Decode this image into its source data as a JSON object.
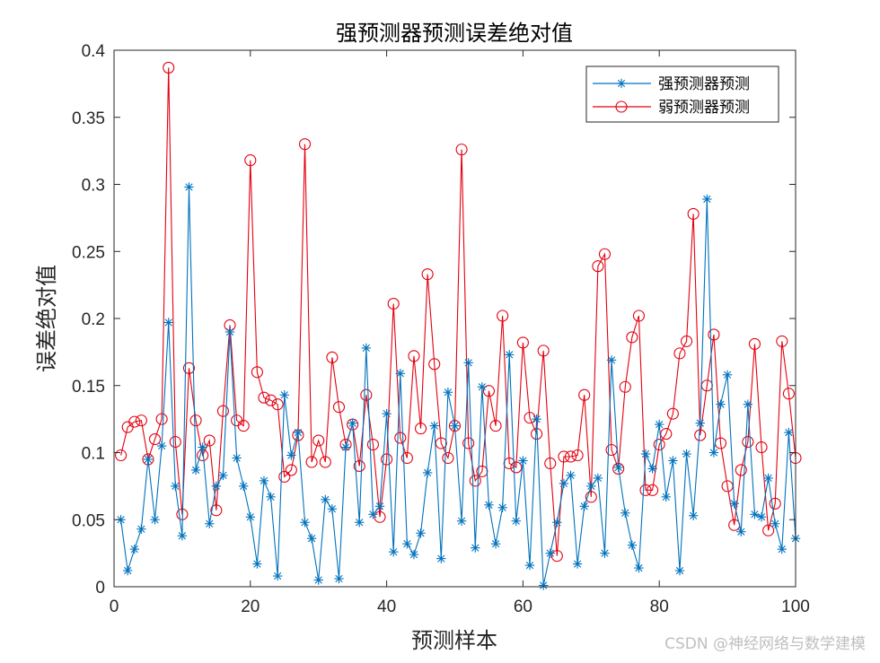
{
  "watermark": "CSDN @神经网络与数学建模",
  "chart_data": {
    "type": "line",
    "title": "强预测器预测误差绝对值",
    "xlabel": "预测样本",
    "ylabel": "误差绝对值",
    "xlim": [
      0,
      100
    ],
    "ylim": [
      0,
      0.4
    ],
    "xticks": [
      0,
      20,
      40,
      60,
      80,
      100
    ],
    "yticks": [
      0,
      0.05,
      0.1,
      0.15,
      0.2,
      0.25,
      0.3,
      0.35,
      0.4
    ],
    "xtick_labels": [
      "0",
      "20",
      "40",
      "60",
      "80",
      "100"
    ],
    "ytick_labels": [
      "0",
      "0.05",
      "0.1",
      "0.15",
      "0.2",
      "0.25",
      "0.3",
      "0.35",
      "0.4"
    ],
    "grid": false,
    "legend_position": "top-right",
    "x": [
      1,
      2,
      3,
      4,
      5,
      6,
      7,
      8,
      9,
      10,
      11,
      12,
      13,
      14,
      15,
      16,
      17,
      18,
      19,
      20,
      21,
      22,
      23,
      24,
      25,
      26,
      27,
      28,
      29,
      30,
      31,
      32,
      33,
      34,
      35,
      36,
      37,
      38,
      39,
      40,
      41,
      42,
      43,
      44,
      45,
      46,
      47,
      48,
      49,
      50,
      51,
      52,
      53,
      54,
      55,
      56,
      57,
      58,
      59,
      60,
      61,
      62,
      63,
      64,
      65,
      66,
      67,
      68,
      69,
      70,
      71,
      72,
      73,
      74,
      75,
      76,
      77,
      78,
      79,
      80,
      81,
      82,
      83,
      84,
      85,
      86,
      87,
      88,
      89,
      90,
      91,
      92,
      93,
      94,
      95,
      96,
      97,
      98,
      99,
      100
    ],
    "series": [
      {
        "name": "强预测器预测",
        "color": "#0072bd",
        "marker": "asterisk",
        "values": [
          0.05,
          0.012,
          0.028,
          0.043,
          0.095,
          0.05,
          0.105,
          0.197,
          0.075,
          0.038,
          0.298,
          0.087,
          0.104,
          0.047,
          0.075,
          0.083,
          0.19,
          0.096,
          0.075,
          0.052,
          0.017,
          0.079,
          0.067,
          0.008,
          0.143,
          0.098,
          0.115,
          0.048,
          0.036,
          0.005,
          0.065,
          0.058,
          0.006,
          0.104,
          0.122,
          0.048,
          0.178,
          0.054,
          0.06,
          0.129,
          0.026,
          0.159,
          0.032,
          0.024,
          0.04,
          0.085,
          0.12,
          0.021,
          0.145,
          0.12,
          0.049,
          0.167,
          0.029,
          0.149,
          0.061,
          0.032,
          0.059,
          0.173,
          0.049,
          0.094,
          0.016,
          0.125,
          0.001,
          0.025,
          0.048,
          0.077,
          0.083,
          0.017,
          0.06,
          0.075,
          0.081,
          0.025,
          0.169,
          0.089,
          0.055,
          0.031,
          0.014,
          0.099,
          0.088,
          0.121,
          0.067,
          0.094,
          0.012,
          0.099,
          0.053,
          0.122,
          0.289,
          0.1,
          0.136,
          0.158,
          0.062,
          0.041,
          0.136,
          0.054,
          0.052,
          0.081,
          0.047,
          0.028,
          0.115,
          0.036
        ]
      },
      {
        "name": "弱预测器预测",
        "color": "#e3000f",
        "marker": "circle",
        "values": [
          0.098,
          0.119,
          0.123,
          0.124,
          0.095,
          0.11,
          0.125,
          0.387,
          0.108,
          0.054,
          0.163,
          0.124,
          0.098,
          0.109,
          0.057,
          0.131,
          0.195,
          0.124,
          0.12,
          0.318,
          0.16,
          0.141,
          0.139,
          0.136,
          0.082,
          0.087,
          0.113,
          0.33,
          0.093,
          0.109,
          0.093,
          0.171,
          0.134,
          0.106,
          0.121,
          0.09,
          0.143,
          0.106,
          0.052,
          0.095,
          0.211,
          0.111,
          0.096,
          0.172,
          0.118,
          0.233,
          0.166,
          0.107,
          0.096,
          0.12,
          0.326,
          0.107,
          0.079,
          0.086,
          0.146,
          0.12,
          0.202,
          0.092,
          0.089,
          0.182,
          0.126,
          0.114,
          0.176,
          0.092,
          0.023,
          0.097,
          0.097,
          0.098,
          0.143,
          0.067,
          0.239,
          0.248,
          0.102,
          0.088,
          0.149,
          0.186,
          0.202,
          0.072,
          0.072,
          0.106,
          0.114,
          0.129,
          0.174,
          0.183,
          0.278,
          0.113,
          0.15,
          0.188,
          0.107,
          0.075,
          0.046,
          0.087,
          0.108,
          0.181,
          0.104,
          0.042,
          0.062,
          0.183,
          0.144,
          0.096
        ]
      }
    ]
  }
}
